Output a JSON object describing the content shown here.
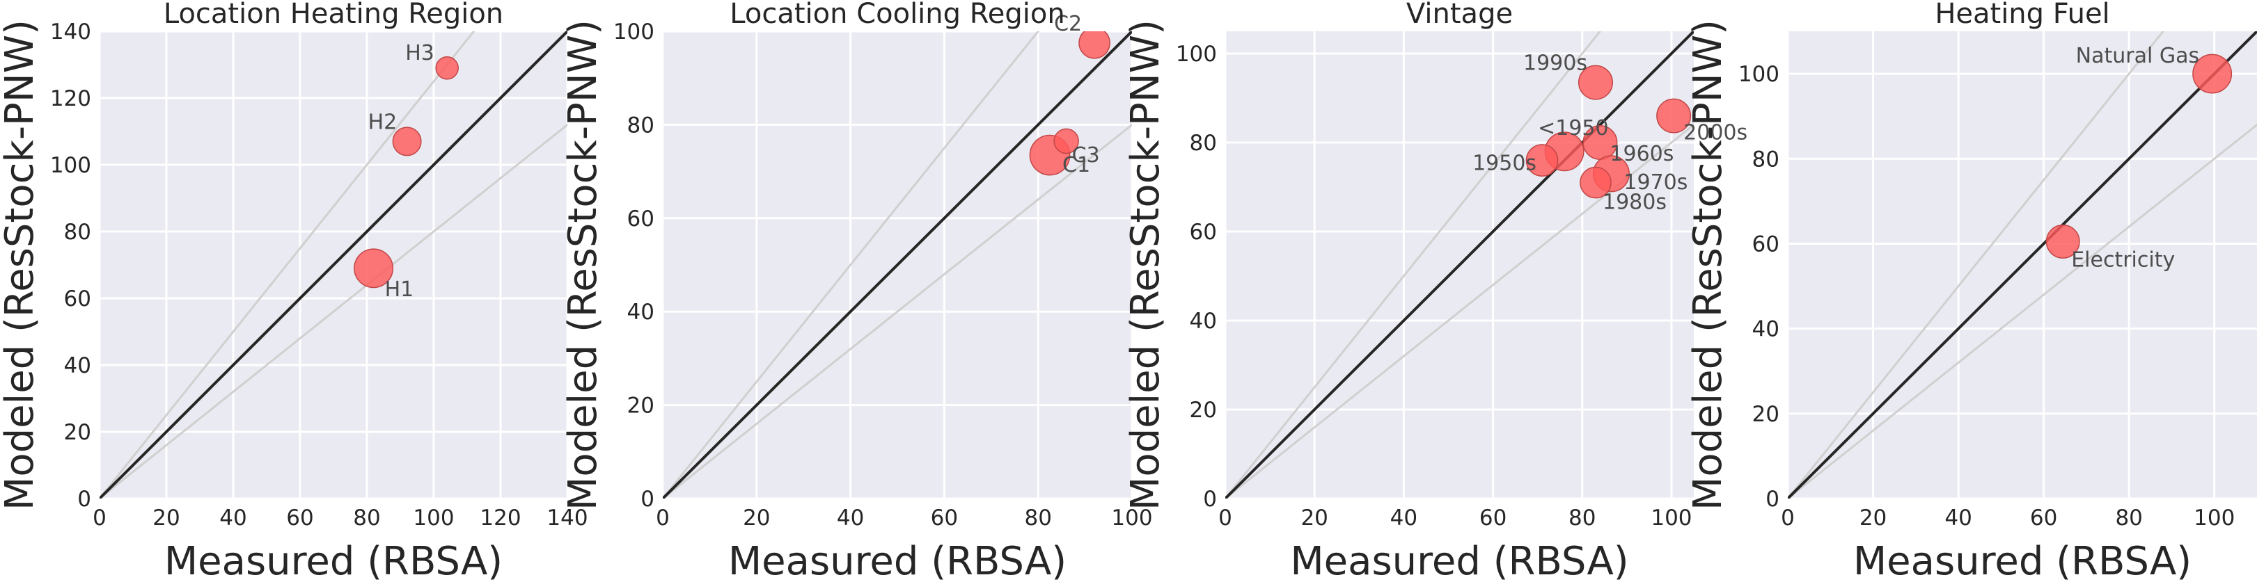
{
  "chart_data": [
    {
      "type": "scatter",
      "title": "Location Heating Region",
      "xlabel": "Measured (RBSA)",
      "ylabel": "Modeled (ResStock-PNW)",
      "xlim": [
        0,
        140
      ],
      "ylim": [
        0,
        140
      ],
      "xticks": [
        0,
        20,
        40,
        60,
        80,
        100,
        120,
        140
      ],
      "yticks": [
        0,
        20,
        40,
        60,
        80,
        100,
        120,
        140
      ],
      "reference_lines": {
        "identity": 1.0,
        "upper": 1.25,
        "lower": 0.8
      },
      "grid": true,
      "points": [
        {
          "label": "H1",
          "x": 82,
          "y": 69,
          "size": 3
        },
        {
          "label": "H2",
          "x": 92,
          "y": 107,
          "size": 1.6
        },
        {
          "label": "H3",
          "x": 104,
          "y": 129,
          "size": 1
        }
      ]
    },
    {
      "type": "scatter",
      "title": "Location Cooling Region",
      "xlabel": "Measured (RBSA)",
      "ylabel": "Modeled (ResStock-PNW)",
      "xlim": [
        0,
        100
      ],
      "ylim": [
        0,
        100
      ],
      "xticks": [
        0,
        20,
        40,
        60,
        80,
        100
      ],
      "yticks": [
        0,
        20,
        40,
        60,
        80,
        100
      ],
      "reference_lines": {
        "identity": 1.0,
        "upper": 1.25,
        "lower": 0.8
      },
      "grid": true,
      "points": [
        {
          "label": "C1",
          "x": 82.5,
          "y": 73.5,
          "size": 3.2
        },
        {
          "label": "C2",
          "x": 92,
          "y": 97.5,
          "size": 1.9
        },
        {
          "label": "C3",
          "x": 86,
          "y": 76.5,
          "size": 1.2
        }
      ]
    },
    {
      "type": "scatter",
      "title": "Vintage",
      "xlabel": "Measured (RBSA)",
      "ylabel": "Modeled (ResStock-PNW)",
      "xlim": [
        0,
        105
      ],
      "ylim": [
        0,
        105
      ],
      "xticks": [
        0,
        20,
        40,
        60,
        80,
        100
      ],
      "yticks": [
        0,
        20,
        40,
        60,
        80,
        100
      ],
      "reference_lines": {
        "identity": 1.0,
        "upper": 1.25,
        "lower": 0.8
      },
      "grid": true,
      "points": [
        {
          "label": "<1950",
          "x": 76,
          "y": 78,
          "size": 3
        },
        {
          "label": "1950s",
          "x": 71,
          "y": 76,
          "size": 2
        },
        {
          "label": "1960s",
          "x": 84,
          "y": 80,
          "size": 2.3
        },
        {
          "label": "1970s",
          "x": 86.5,
          "y": 73,
          "size": 2.6
        },
        {
          "label": "1980s",
          "x": 83,
          "y": 71,
          "size": 1.9
        },
        {
          "label": "1990s",
          "x": 83,
          "y": 93.5,
          "size": 2.3
        },
        {
          "label": "2000s",
          "x": 100.5,
          "y": 86,
          "size": 2.3
        }
      ]
    },
    {
      "type": "scatter",
      "title": "Heating Fuel",
      "xlabel": "Measured (RBSA)",
      "ylabel": "Modeled (ResStock-PNW)",
      "xlim": [
        0,
        110
      ],
      "ylim": [
        0,
        110
      ],
      "xticks": [
        0,
        20,
        40,
        60,
        80,
        100
      ],
      "yticks": [
        0,
        20,
        40,
        60,
        80,
        100
      ],
      "reference_lines": {
        "identity": 1.0,
        "upper": 1.25,
        "lower": 0.8
      },
      "grid": true,
      "points": [
        {
          "label": "Natural Gas",
          "x": 99.5,
          "y": 100,
          "size": 3
        },
        {
          "label": "Electricity",
          "x": 64.5,
          "y": 60.5,
          "size": 2.2
        }
      ]
    }
  ],
  "colors": {
    "panel_background": "#eaeaf2",
    "grid": "#ffffff",
    "identity_line": "#262626",
    "bound_lines": "#d0d0d0",
    "marker_fill": "#ff5a5a",
    "marker_edge": "#c24646"
  }
}
